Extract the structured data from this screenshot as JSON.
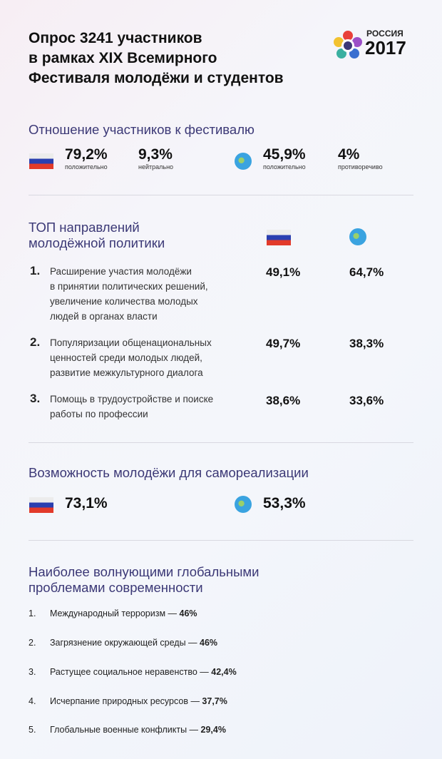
{
  "title": [
    "Опрос 3241 участников",
    "в рамках XIX Всемирного",
    "Фестиваля молодёжи и студентов"
  ],
  "logo": {
    "line1": "РОССИЯ",
    "line2": "2017"
  },
  "attitude": {
    "heading": "Отношение участников к фестивалю",
    "russia": [
      {
        "value": "79,2%",
        "label": "положительно"
      },
      {
        "value": "9,3%",
        "label": "нейтрально"
      }
    ],
    "world": [
      {
        "value": "45,9%",
        "label": "положительно"
      },
      {
        "value": "4%",
        "label": "противоречиво"
      }
    ]
  },
  "policy": {
    "heading": [
      "ТОП направлений",
      "молодёжной политики"
    ],
    "items": [
      {
        "num": "1.",
        "lines": [
          "Расширение участия молодёжи",
          "в принятии политических решений,",
          "увеличение количества молодых",
          "людей в органах власти"
        ],
        "russia": "49,1%",
        "world": "64,7%"
      },
      {
        "num": "2.",
        "lines": [
          "Популяризации общенациональных",
          "ценностей среди молодых людей,",
          "развитие межкультурного диалога"
        ],
        "russia": "49,7%",
        "world": "38,3%"
      },
      {
        "num": "3.",
        "lines": [
          "Помощь в трудоустройстве и поиске",
          "работы по профессии"
        ],
        "russia": "38,6%",
        "world": "33,6%"
      }
    ]
  },
  "selfrealization": {
    "heading": "Возможность молодёжи для самореализации",
    "russia": "73,1%",
    "world": "53,3%"
  },
  "problems": {
    "heading": [
      "Наиболее волнующими глобальными",
      "проблемами современности"
    ],
    "items": [
      {
        "num": "1.",
        "text": "Международный терроризм — ",
        "value": "46%"
      },
      {
        "num": "2.",
        "text": "Загрязнение окружающей среды — ",
        "value": "46%"
      },
      {
        "num": "3.",
        "text": "Растущее социальное неравенство — ",
        "value": "42,4%"
      },
      {
        "num": "4.",
        "text": "Исчерпание природных ресурсов — ",
        "value": "37,7%"
      },
      {
        "num": "5.",
        "text": "Глобальные военные конфликты — ",
        "value": "29,4%"
      }
    ]
  },
  "colors": {
    "heading": "#3b3876",
    "flag": [
      "#ececec",
      "#2a3fb0",
      "#e23a2a"
    ],
    "globe": "#3aa3e0"
  }
}
